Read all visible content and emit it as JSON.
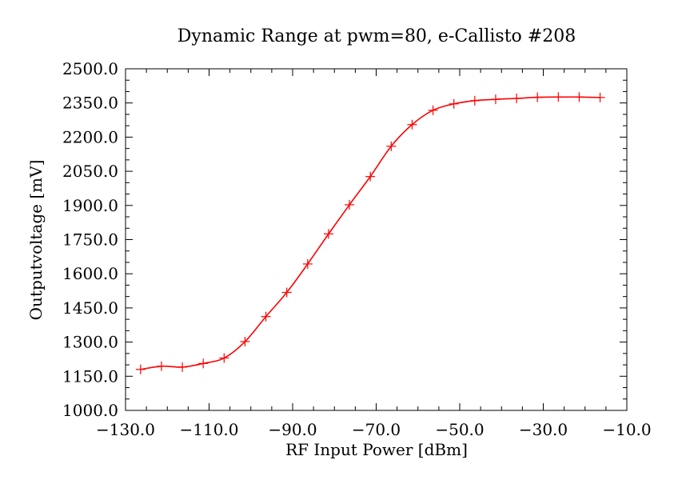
{
  "chart_data": {
    "type": "line",
    "title": "Dynamic Range at pwm=80, e-Callisto #208",
    "xlabel": "RF Input Power [dBm]",
    "ylabel": "Outputvoltage [mV]",
    "xlim": [
      -130,
      -10
    ],
    "ylim": [
      1000,
      2500
    ],
    "x_ticks": [
      -130,
      -110,
      -90,
      -70,
      -50,
      -30,
      -10
    ],
    "x_tick_labels": [
      "−130.0",
      "−110.0",
      "−90.0",
      "−70.0",
      "−50.0",
      "−30.0",
      "−10.0"
    ],
    "y_ticks": [
      1000,
      1150,
      1300,
      1450,
      1600,
      1750,
      1900,
      2050,
      2200,
      2350,
      2500
    ],
    "y_tick_labels": [
      "1000.0",
      "1150.0",
      "1300.0",
      "1450.0",
      "1600.0",
      "1750.0",
      "1900.0",
      "2050.0",
      "2200.0",
      "2350.0",
      "2500.0"
    ],
    "grid": false,
    "series": [
      {
        "color": "#ff0000",
        "marker": "plus",
        "x": [
          -126.4,
          -121.4,
          -116.4,
          -111.4,
          -106.4,
          -101.4,
          -96.4,
          -91.4,
          -86.4,
          -81.4,
          -76.4,
          -71.4,
          -66.4,
          -61.4,
          -56.4,
          -51.4,
          -46.4,
          -41.4,
          -36.4,
          -31.4,
          -26.4,
          -21.4,
          -16.4
        ],
        "y": [
          1180,
          1194,
          1190,
          1206,
          1230,
          1302,
          1412,
          1518,
          1643,
          1775,
          1903,
          2027,
          2160,
          2255,
          2318,
          2346,
          2360,
          2366,
          2370,
          2375,
          2376,
          2376,
          2374
        ]
      }
    ]
  }
}
